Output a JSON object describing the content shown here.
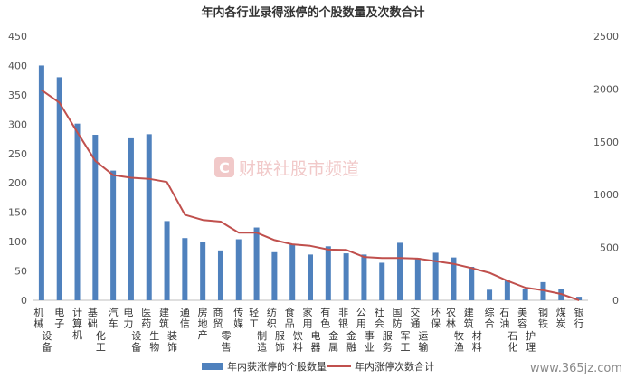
{
  "chart_data": {
    "type": "bar",
    "title": "年内各行业录得涨停的个股数量及次数合计",
    "categories": [
      "机械设备",
      "电子",
      "计算机",
      "基础化工",
      "汽车",
      "电力设备",
      "医药生物",
      "建筑装饰",
      "通信",
      "房地产",
      "商贸零售",
      "传媒",
      "轻工制造",
      "纺织服饰",
      "食品饮料",
      "家用电器",
      "有色金属",
      "非银金融",
      "公用事业",
      "社会服务",
      "国防军工",
      "交通运输",
      "环保",
      "农林牧渔",
      "建筑材料",
      "综合",
      "石油石化",
      "美容护理",
      "钢铁",
      "煤炭",
      "银行"
    ],
    "series": [
      {
        "name": "年内获涨停的个股数量",
        "axis": "left",
        "color": "#4f81bd",
        "values": [
          400,
          380,
          301,
          282,
          221,
          276,
          283,
          135,
          106,
          99,
          85,
          104,
          124,
          82,
          96,
          78,
          92,
          80,
          78,
          64,
          98,
          72,
          81,
          73,
          57,
          18,
          35,
          20,
          31,
          19,
          6
        ]
      },
      {
        "name": "年内涨停次数合计",
        "axis": "right",
        "color": "#c0504d",
        "values": [
          1990,
          1870,
          1590,
          1320,
          1185,
          1160,
          1150,
          1120,
          810,
          760,
          745,
          640,
          640,
          570,
          530,
          515,
          480,
          478,
          410,
          400,
          400,
          395,
          370,
          345,
          305,
          260,
          185,
          120,
          95,
          60,
          0
        ]
      }
    ],
    "y_left": {
      "min": 0,
      "max": 450,
      "ticks": [
        0,
        50,
        100,
        150,
        200,
        250,
        300,
        350,
        400,
        450
      ]
    },
    "y_right": {
      "min": 0,
      "max": 2500,
      "ticks": [
        0,
        500,
        1000,
        1500,
        2000,
        2500
      ]
    },
    "grid": false,
    "legend_position": "bottom"
  },
  "watermark": {
    "text": "财联社股市频道",
    "logo_letter": "C"
  },
  "site_watermark": "www.365jz.com"
}
